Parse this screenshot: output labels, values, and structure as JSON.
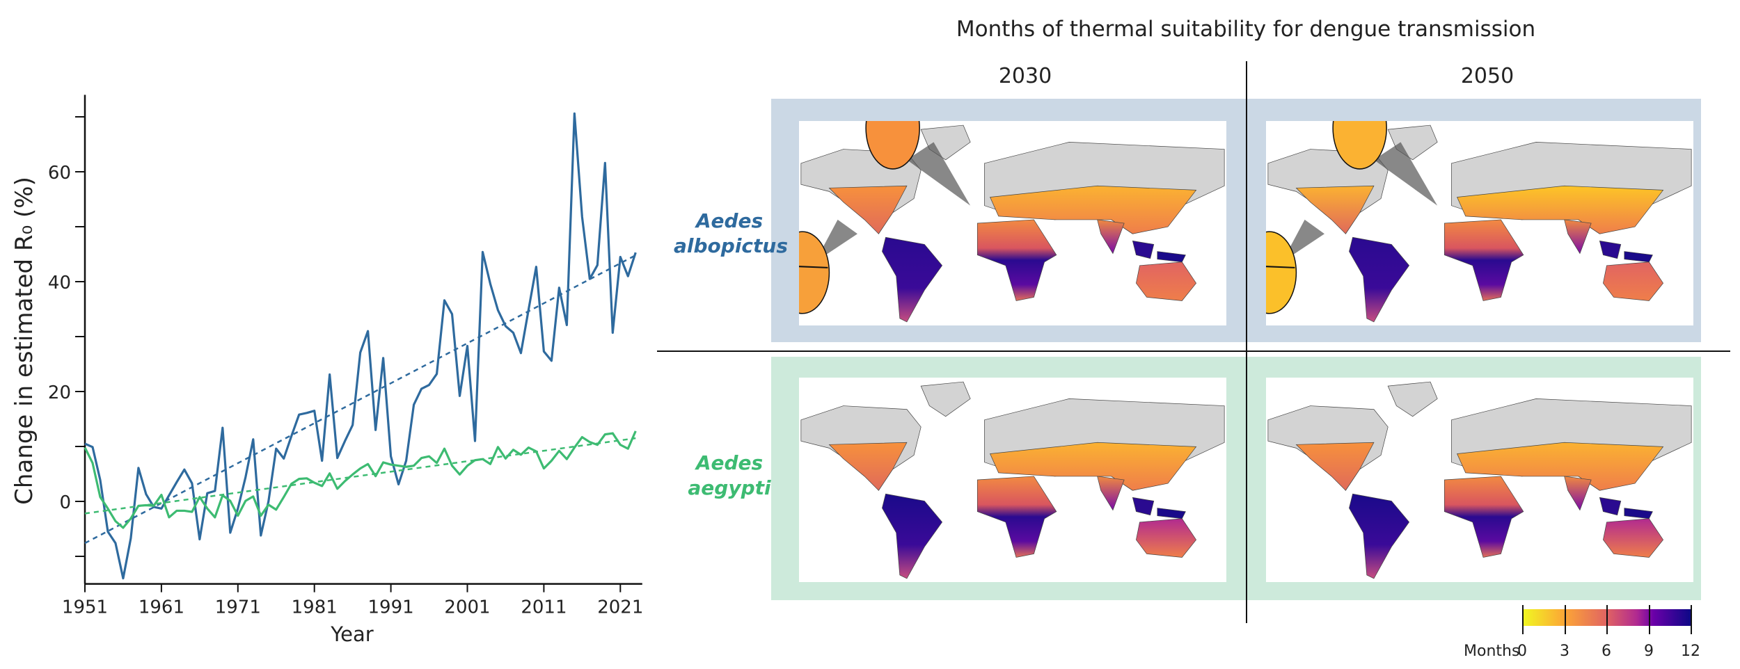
{
  "chart_data": {
    "type": "line",
    "xlabel": "Year",
    "ylabel": "Change in estimated R₀ (%)",
    "xlim": [
      1951,
      2023.5
    ],
    "ylim": [
      -14,
      74
    ],
    "x_ticks": [
      1951,
      1961,
      1971,
      1981,
      1991,
      2001,
      2011,
      2021
    ],
    "y_ticks": [
      0,
      20,
      40,
      60
    ],
    "y_minor_ticks": [
      -10,
      10,
      30,
      50,
      70
    ],
    "grid": false,
    "x": [
      1951,
      1952,
      1953,
      1954,
      1955,
      1956,
      1957,
      1958,
      1959,
      1960,
      1961,
      1962,
      1963,
      1964,
      1965,
      1966,
      1967,
      1968,
      1969,
      1970,
      1971,
      1972,
      1973,
      1974,
      1975,
      1976,
      1977,
      1978,
      1979,
      1980,
      1981,
      1982,
      1983,
      1984,
      1985,
      1986,
      1987,
      1988,
      1989,
      1990,
      1991,
      1992,
      1993,
      1994,
      1995,
      1996,
      1997,
      1998,
      1999,
      2000,
      2001,
      2002,
      2003,
      2004,
      2005,
      2006,
      2007,
      2008,
      2009,
      2010,
      2011,
      2012,
      2013,
      2014,
      2015,
      2016,
      2017,
      2018,
      2019,
      2020,
      2021,
      2022,
      2023
    ],
    "series": [
      {
        "name": "Aedes albopictus",
        "color": "#2e6a9e",
        "values": [
          10.5,
          9.9,
          3.9,
          -5.5,
          -7.6,
          -14,
          -6.7,
          6.1,
          1.3,
          -1,
          -1.3,
          1.1,
          3.5,
          5.8,
          3.3,
          -6.9,
          1.5,
          1.9,
          13.4,
          -5.7,
          -1.3,
          4.4,
          11.3,
          -6.2,
          0,
          9.6,
          7.8,
          11.9,
          15.8,
          16.1,
          16.5,
          7.4,
          23.1,
          7.9,
          11,
          13.9,
          27.1,
          31,
          13,
          26.1,
          8.2,
          3.1,
          7.4,
          17.6,
          20.5,
          21.2,
          23.2,
          36.6,
          34.1,
          19.2,
          28.3,
          11,
          45.4,
          39.6,
          34.8,
          31.9,
          30.7,
          27,
          34.9,
          42.7,
          27.3,
          25.6,
          38.9,
          32.1,
          70.6,
          51.8,
          40.5,
          43,
          61.6,
          30.7,
          44.5,
          41,
          45.3
        ],
        "trend": {
          "start": [
            1951,
            -7.6
          ],
          "end": [
            2023,
            44.8
          ]
        }
      },
      {
        "name": "Aedes aegypti",
        "color": "#3dbb72",
        "values": [
          9.8,
          7,
          0.8,
          -1.3,
          -3.6,
          -4.8,
          -3.1,
          -0.8,
          -0.7,
          -0.8,
          1.2,
          -2.9,
          -1.7,
          -1.7,
          -1.9,
          0.8,
          -1.3,
          -2.9,
          1.1,
          0.1,
          -2.6,
          0.1,
          0.9,
          -2.6,
          -0.6,
          -1.5,
          0.8,
          3.2,
          4.1,
          4.2,
          3.4,
          2.8,
          5.1,
          2.3,
          3.7,
          4.9,
          6,
          6.8,
          4.6,
          7.1,
          6.7,
          6.5,
          6.3,
          6.5,
          7.9,
          8.2,
          7,
          9.6,
          6.5,
          4.9,
          6.5,
          7.5,
          7.7,
          6.8,
          9.9,
          7.8,
          9.4,
          8.5,
          9.8,
          9.1,
          6,
          7.4,
          9.2,
          7.7,
          9.8,
          11.7,
          10.8,
          10.3,
          12.2,
          12.4,
          10.3,
          9.6,
          12.8
        ],
        "trend": {
          "start": [
            1951,
            -2.2
          ],
          "end": [
            2023,
            11.5
          ]
        }
      }
    ]
  },
  "maps": {
    "title": "Months of thermal suitability for dengue transmission",
    "columns": [
      "2030",
      "2050"
    ],
    "rows": [
      {
        "label_line1": "Aedes",
        "label_line2": "albopictus",
        "color": "#2e6a9e",
        "panel_color": "#cbd8e5"
      },
      {
        "label_line1": "Aedes",
        "label_line2": "aegypti",
        "color": "#3dbb72",
        "panel_color": "#cdeadb"
      }
    ],
    "colorbar": {
      "label": "Months",
      "ticks": [
        "0",
        "3",
        "6",
        "9",
        "12"
      ],
      "colors": [
        "#f0f921",
        "#fca636",
        "#e16462",
        "#b12a90",
        "#6a00a8",
        "#0d0887"
      ]
    }
  }
}
